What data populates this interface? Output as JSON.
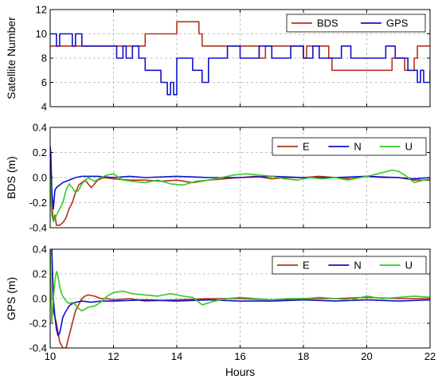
{
  "chart_data": [
    {
      "type": "line",
      "ylabel": "Satellite Number",
      "xlim": [
        10,
        22
      ],
      "ylim": [
        4,
        12
      ],
      "yticks": [
        4,
        6,
        8,
        10,
        12
      ],
      "legend": "top-right",
      "grid": true,
      "series": [
        {
          "name": "BDS",
          "color": "#b5301c",
          "x": [
            10,
            10.2,
            12.85,
            13.0,
            14.0,
            14.7,
            14.8,
            16.5,
            16.6,
            16.8,
            18.0,
            18.1,
            18.8,
            18.9,
            20.7,
            20.8,
            21.2,
            21.5,
            21.6,
            22
          ],
          "y": [
            9,
            9,
            9,
            10,
            11,
            10,
            9,
            9,
            8,
            9,
            8,
            9,
            8,
            7,
            7,
            8,
            7,
            8,
            9,
            9
          ]
        },
        {
          "name": "GPS",
          "color": "#1111cc",
          "x": [
            10,
            10.2,
            10.3,
            10.7,
            10.8,
            11.0,
            12.0,
            12.1,
            12.3,
            12.4,
            12.6,
            12.8,
            13.0,
            13.3,
            13.5,
            13.7,
            13.8,
            13.9,
            14.0,
            14.3,
            14.5,
            14.8,
            15.0,
            15.3,
            15.6,
            16.0,
            16.4,
            16.6,
            17.0,
            17.4,
            17.6,
            18.0,
            18.3,
            18.5,
            18.9,
            19.2,
            19.5,
            19.8,
            20.0,
            20.3,
            20.6,
            20.9,
            21.0,
            21.3,
            21.5,
            21.6,
            21.7,
            21.8,
            22
          ],
          "y": [
            10,
            9,
            10,
            9,
            10,
            9,
            9,
            8,
            9,
            8,
            9,
            8,
            7,
            7,
            6,
            5,
            6,
            5,
            8,
            8,
            7,
            6,
            8,
            8,
            9,
            8,
            8,
            9,
            8,
            8,
            9,
            8,
            9,
            8,
            8,
            9,
            8,
            8,
            8,
            8,
            9,
            8,
            8,
            7,
            7,
            6,
            7,
            6,
            7
          ]
        }
      ]
    },
    {
      "type": "line",
      "ylabel": "BDS (m)",
      "xlim": [
        10,
        22
      ],
      "ylim": [
        -0.4,
        0.4
      ],
      "yticks": [
        -0.4,
        -0.2,
        0.0,
        0.2,
        0.4
      ],
      "legend": "top-right",
      "grid": true,
      "series": [
        {
          "name": "E",
          "color": "#b5301c",
          "x": [
            10,
            10.05,
            10.1,
            10.15,
            10.2,
            10.3,
            10.4,
            10.5,
            10.6,
            10.7,
            10.8,
            10.9,
            11.0,
            11.1,
            11.2,
            11.3,
            11.4,
            11.5,
            11.7,
            12.0,
            12.5,
            13.0,
            13.5,
            14.0,
            14.5,
            15.0,
            15.5,
            16.0,
            16.5,
            17.0,
            17.5,
            18.0,
            18.5,
            19.0,
            19.5,
            20.0,
            20.5,
            21.0,
            21.5,
            22
          ],
          "y": [
            0.1,
            -0.2,
            -0.35,
            -0.3,
            -0.38,
            -0.38,
            -0.36,
            -0.32,
            -0.25,
            -0.2,
            -0.12,
            -0.06,
            -0.04,
            -0.02,
            -0.05,
            -0.08,
            -0.05,
            -0.02,
            0.0,
            -0.01,
            -0.02,
            -0.02,
            -0.03,
            -0.02,
            -0.04,
            -0.02,
            -0.01,
            0.0,
            0.01,
            -0.01,
            0.0,
            0.0,
            0.01,
            0.0,
            -0.01,
            0.01,
            0.0,
            0.0,
            -0.02,
            -0.02
          ]
        },
        {
          "name": "N",
          "color": "#1111cc",
          "x": [
            10,
            10.02,
            10.05,
            10.1,
            10.15,
            10.2,
            10.3,
            10.4,
            10.6,
            10.8,
            11.0,
            11.5,
            12.0,
            12.5,
            13.0,
            14.0,
            15.0,
            16.0,
            17.0,
            18.0,
            19.0,
            20.0,
            21.0,
            21.5,
            22
          ],
          "y": [
            0.25,
            0.2,
            -0.1,
            -0.25,
            -0.1,
            -0.08,
            -0.06,
            -0.04,
            -0.02,
            0.0,
            0.01,
            0.01,
            0.0,
            0.01,
            0.0,
            0.01,
            0.0,
            0.0,
            0.01,
            0.0,
            0.0,
            0.01,
            0.0,
            -0.01,
            0.0
          ]
        },
        {
          "name": "U",
          "color": "#33cc22",
          "x": [
            10,
            10.05,
            10.1,
            10.2,
            10.3,
            10.4,
            10.5,
            10.6,
            10.7,
            10.8,
            10.9,
            11.0,
            11.2,
            11.4,
            11.6,
            11.8,
            12.0,
            12.3,
            12.6,
            13.0,
            13.4,
            13.8,
            14.2,
            14.6,
            15.0,
            15.4,
            15.8,
            16.2,
            16.6,
            17.0,
            17.4,
            17.8,
            18.2,
            18.6,
            19.0,
            19.4,
            19.8,
            20.2,
            20.5,
            20.8,
            21.0,
            21.2,
            21.5,
            21.8,
            22
          ],
          "y": [
            0.0,
            -0.3,
            -0.35,
            -0.3,
            -0.25,
            -0.2,
            -0.1,
            -0.05,
            -0.08,
            -0.12,
            -0.1,
            -0.05,
            0.0,
            -0.03,
            0.0,
            0.02,
            0.03,
            -0.02,
            -0.03,
            -0.04,
            -0.02,
            -0.05,
            -0.06,
            -0.03,
            -0.02,
            0.0,
            0.02,
            0.03,
            0.02,
            0.01,
            -0.01,
            -0.02,
            0.0,
            -0.01,
            0.0,
            -0.02,
            0.0,
            0.02,
            0.04,
            0.06,
            0.05,
            0.02,
            -0.04,
            -0.02,
            -0.01
          ]
        }
      ]
    },
    {
      "type": "line",
      "xlabel": "Hours",
      "ylabel": "GPS (m)",
      "xlim": [
        10,
        22
      ],
      "ylim": [
        -0.4,
        0.4
      ],
      "xticks": [
        10,
        12,
        14,
        16,
        18,
        20,
        22
      ],
      "yticks": [
        -0.4,
        -0.2,
        0.0,
        0.2,
        0.4
      ],
      "legend": "top-right",
      "grid": true,
      "series": [
        {
          "name": "E",
          "color": "#b5301c",
          "x": [
            10,
            10.05,
            10.1,
            10.2,
            10.3,
            10.4,
            10.5,
            10.6,
            10.7,
            10.8,
            10.9,
            11.0,
            11.1,
            11.2,
            11.4,
            11.6,
            11.8,
            12.0,
            12.5,
            13.0,
            14.0,
            15.0,
            16.0,
            17.0,
            18.0,
            19.0,
            20.0,
            21.0,
            22
          ],
          "y": [
            0.4,
            0.4,
            -0.1,
            -0.2,
            -0.35,
            -0.4,
            -0.4,
            -0.3,
            -0.2,
            -0.1,
            -0.05,
            0.0,
            0.02,
            0.03,
            0.02,
            0.0,
            0.0,
            -0.01,
            0.0,
            -0.02,
            -0.01,
            0.0,
            0.0,
            -0.01,
            0.0,
            0.0,
            0.01,
            0.0,
            0.0
          ]
        },
        {
          "name": "N",
          "color": "#1111cc",
          "x": [
            10,
            10.05,
            10.1,
            10.15,
            10.2,
            10.25,
            10.3,
            10.35,
            10.4,
            10.5,
            10.6,
            10.7,
            10.8,
            11.0,
            11.3,
            11.6,
            12.0,
            13.0,
            14.0,
            15.0,
            16.0,
            17.0,
            18.0,
            19.0,
            20.0,
            21.0,
            22
          ],
          "y": [
            0.4,
            0.4,
            0.0,
            -0.15,
            -0.25,
            -0.3,
            -0.28,
            -0.22,
            -0.15,
            -0.1,
            -0.06,
            -0.04,
            -0.03,
            -0.02,
            -0.03,
            -0.02,
            -0.02,
            -0.01,
            -0.02,
            -0.01,
            -0.02,
            -0.02,
            -0.01,
            -0.02,
            -0.01,
            -0.02,
            -0.01
          ]
        },
        {
          "name": "U",
          "color": "#33cc22",
          "x": [
            10,
            10.05,
            10.1,
            10.15,
            10.2,
            10.25,
            10.3,
            10.35,
            10.4,
            10.5,
            10.6,
            10.7,
            10.8,
            10.9,
            11.0,
            11.2,
            11.4,
            11.6,
            11.8,
            12.0,
            12.3,
            12.6,
            13.0,
            13.4,
            13.8,
            14.2,
            14.5,
            14.8,
            15.2,
            15.6,
            16.0,
            16.5,
            17.0,
            17.5,
            18.0,
            18.5,
            19.0,
            19.5,
            20.0,
            20.5,
            21.0,
            21.5,
            22
          ],
          "y": [
            0.4,
            -0.2,
            0.0,
            0.15,
            0.22,
            0.18,
            0.1,
            0.05,
            0.02,
            -0.02,
            -0.04,
            -0.03,
            -0.05,
            -0.08,
            -0.1,
            -0.07,
            -0.06,
            -0.03,
            0.02,
            0.05,
            0.06,
            0.04,
            0.03,
            0.02,
            0.04,
            0.02,
            0.01,
            -0.05,
            -0.02,
            0.0,
            0.01,
            0.0,
            -0.01,
            0.0,
            0.0,
            0.01,
            0.0,
            -0.01,
            0.02,
            0.0,
            0.01,
            0.02,
            0.01
          ]
        }
      ]
    }
  ]
}
